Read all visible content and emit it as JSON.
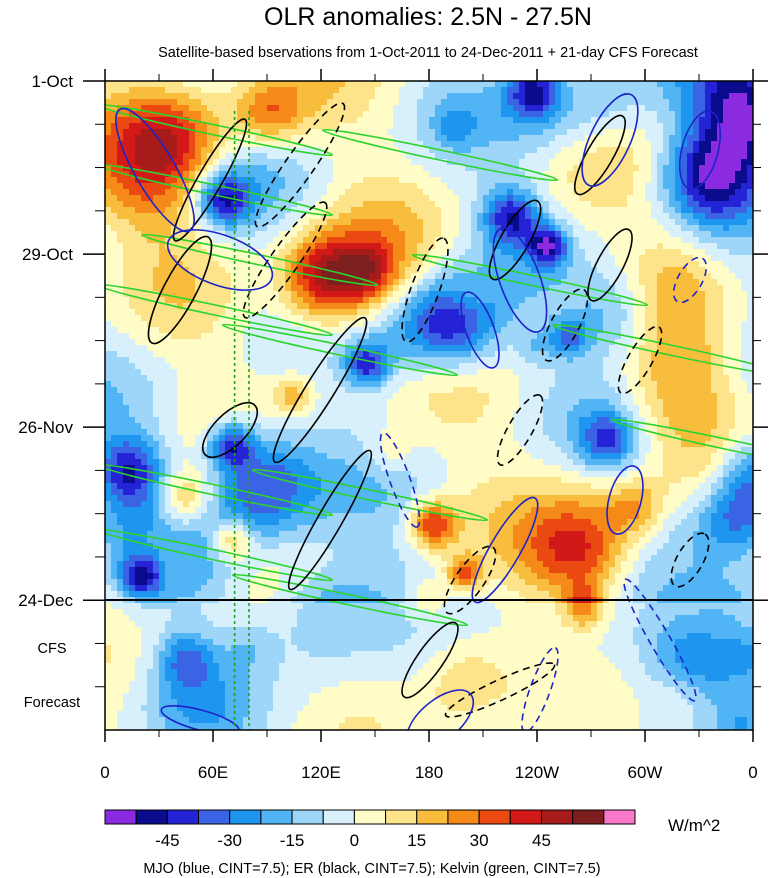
{
  "chart_data": {
    "type": "heatmap",
    "title": "OLR anomalies: 2.5N - 27.5N",
    "subtitle": "Satellite-based bservations from 1-Oct-2011 to 24-Dec-2011 + 21-day CFS Forecast",
    "x_ticks": [
      "0",
      "60E",
      "120E",
      "180",
      "120W",
      "60W",
      "0"
    ],
    "x_tick_lon_deg": [
      0,
      60,
      120,
      180,
      240,
      300,
      360
    ],
    "y_ticks": [
      "1-Oct",
      "29-Oct",
      "26-Nov",
      "24-Dec"
    ],
    "y_tick_day_index": [
      0,
      28,
      56,
      84
    ],
    "time_range_days": [
      0,
      105
    ],
    "forecast_label": [
      "CFS",
      "Forecast"
    ],
    "forecast_start_day": 84,
    "colorbar": {
      "tick_labels": [
        "-45",
        "-30",
        "-15",
        "0",
        "15",
        "30",
        "45"
      ],
      "levels": [
        -52.5,
        -45,
        -37.5,
        -30,
        -22.5,
        -15,
        -7.5,
        0,
        7.5,
        15,
        22.5,
        30,
        37.5,
        45,
        52.5
      ],
      "colors": [
        "#8a2be2",
        "#0b0b8e",
        "#2424d6",
        "#3a64e4",
        "#1e96f0",
        "#50b4f5",
        "#9dd6f8",
        "#d8f0fb",
        "#fffcc8",
        "#fde38a",
        "#f9bd3e",
        "#f58a19",
        "#ea4a12",
        "#d31818",
        "#a71b1b",
        "#7d1f1f",
        "#fa78c8"
      ],
      "units": "W/m^2"
    },
    "legend_text": "MJO (blue, CINT=7.5); ER (black, CINT=7.5); Kelvin (green, CINT=7.5)",
    "contour_colors": {
      "mjo": "#1c24c8",
      "er": "#000000",
      "kelvin": "#2cd32c",
      "vlines": "#22a022"
    },
    "vertical_reference_lon_deg": [
      72,
      80
    ]
  }
}
